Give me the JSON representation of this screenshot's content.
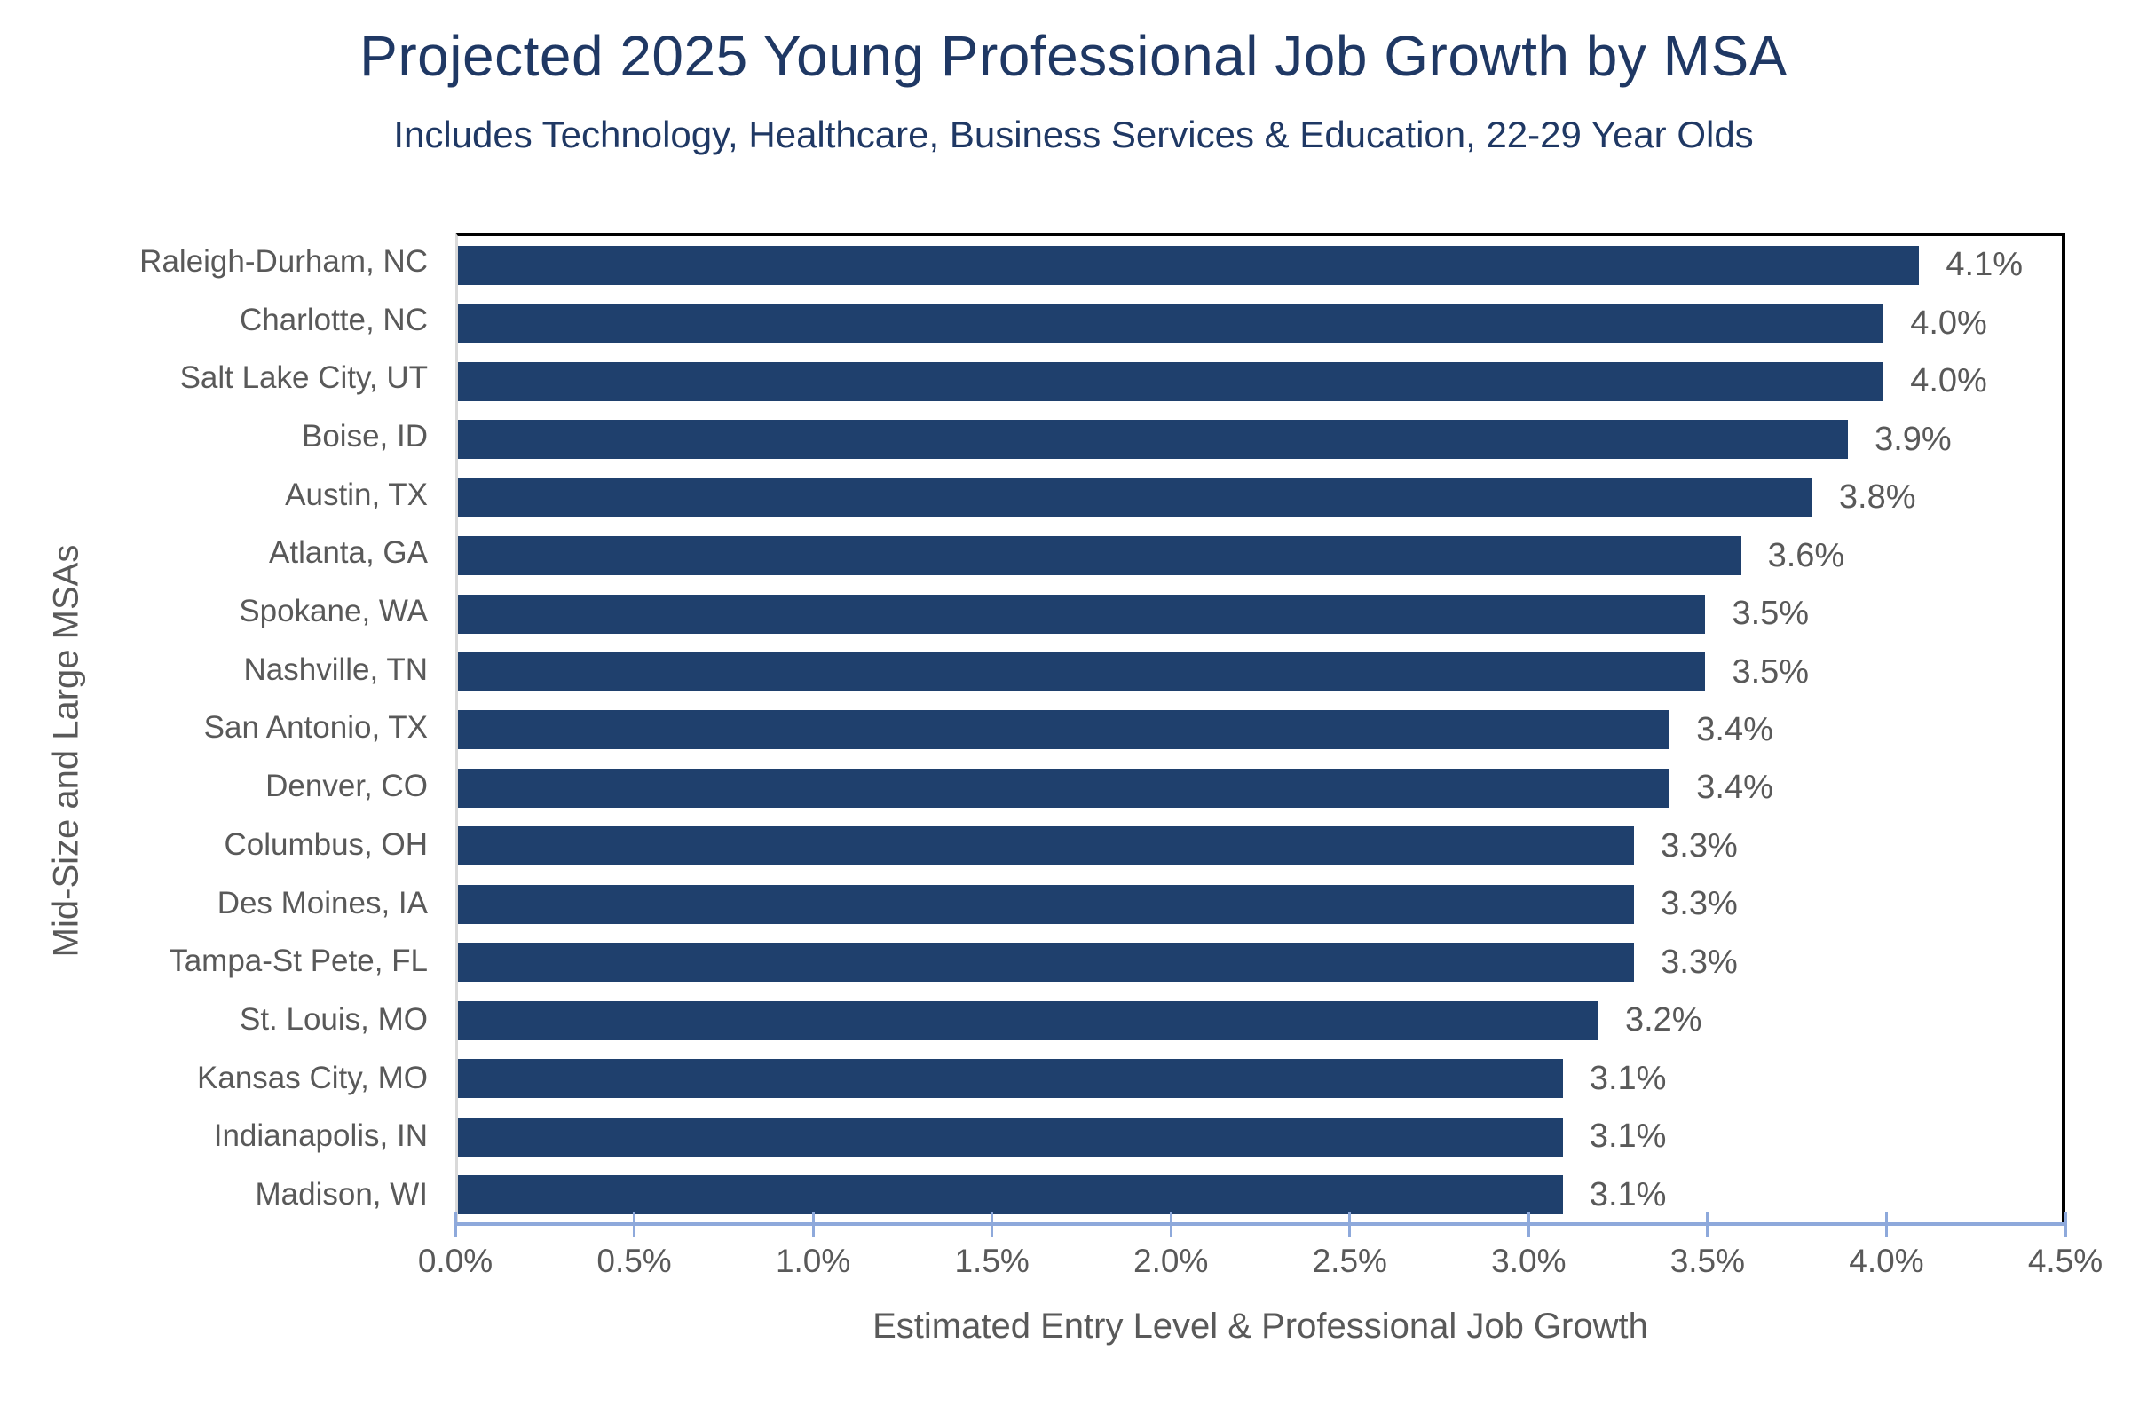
{
  "title": "Projected 2025 Young Professional Job Growth by MSA",
  "subtitle": "Includes Technology, Healthcare, Business Services & Education, 22-29 Year Olds",
  "colors": {
    "background": "#FFFFFF",
    "title_navy": "#1F3864",
    "bar_fill": "#1F406D",
    "gray_text": "#595959",
    "value_axis_line": "#8EA9DB",
    "category_axis_line": "#D9D9D9",
    "plot_border": "#000000"
  },
  "chart_data": {
    "type": "bar",
    "orientation": "horizontal",
    "title": "Projected 2025 Young Professional Job Growth by MSA",
    "subtitle": "Includes Technology, Healthcare, Business Services & Education, 22-29 Year Olds",
    "xlabel": "Estimated Entry Level & Professional Job Growth",
    "ylabel": "Mid-Size and Large MSAs",
    "categories": [
      "Raleigh-Durham, NC",
      "Charlotte, NC",
      "Salt Lake City, UT",
      "Boise, ID",
      "Austin, TX",
      "Atlanta, GA",
      "Spokane, WA",
      "Nashville, TN",
      "San Antonio, TX",
      "Denver, CO",
      "Columbus, OH",
      "Des Moines, IA",
      "Tampa-St Pete, FL",
      "St. Louis, MO",
      "Kansas City, MO",
      "Indianapolis, IN",
      "Madison, WI"
    ],
    "values": [
      4.1,
      4.0,
      4.0,
      3.9,
      3.8,
      3.6,
      3.5,
      3.5,
      3.4,
      3.4,
      3.3,
      3.3,
      3.3,
      3.2,
      3.1,
      3.1,
      3.1
    ],
    "data_labels": [
      "4.1%",
      "4.0%",
      "4.0%",
      "3.9%",
      "3.8%",
      "3.6%",
      "3.5%",
      "3.5%",
      "3.4%",
      "3.4%",
      "3.3%",
      "3.3%",
      "3.3%",
      "3.2%",
      "3.1%",
      "3.1%",
      "3.1%"
    ],
    "xlim": [
      0,
      4.5
    ],
    "x_ticks": [
      "0.0%",
      "0.5%",
      "1.0%",
      "1.5%",
      "2.0%",
      "2.5%",
      "3.0%",
      "3.5%",
      "4.0%",
      "4.5%"
    ],
    "grid": false,
    "legend": false
  }
}
